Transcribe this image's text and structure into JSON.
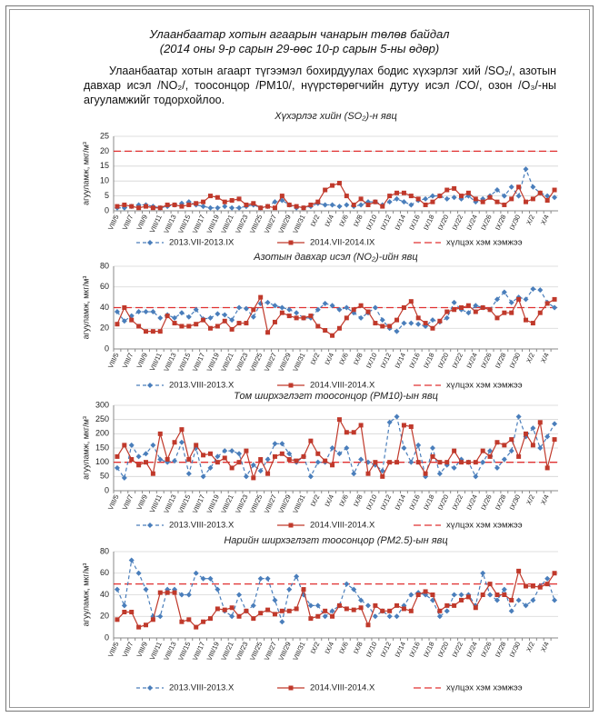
{
  "title": "Улаанбаатар хотын агаарын чанарын төлөв байдал",
  "subtitle": "(2014 оны 9-р сарын 29-өөс 10-р сарын 5-ны өдөр)",
  "paragraph": "Улаанбаатар хотын агаарт түгээмэл бохирдуулах бодис хүхэрлэг хий /SO₂/, азотын давхар исэл /NO₂/, тоосонцор /PM10/, нүүрстөрөгчийн дутуу исэл /CO/, озон /O₃/-ны агууламжийг тодорхойлоо.",
  "chart_data": [
    {
      "type": "line",
      "title": "Хүхэрлэг хийн (SO₂)-н явц",
      "y_label": "агууламж, мкг/м³",
      "categories": [
        "VIII/5",
        null,
        "VIII/7",
        null,
        "VIII/9",
        null,
        "VIII/11",
        null,
        "VIII/13",
        null,
        "VIII/15",
        null,
        "VIII/17",
        null,
        "VIII/19",
        null,
        "VIII/21",
        null,
        "VIII/23",
        null,
        "VIII/25",
        null,
        "VIII/27",
        null,
        "VIII/29",
        null,
        "VIII/31",
        null,
        "IX/2",
        null,
        "IX/4",
        null,
        "IX/6",
        null,
        "IX/8",
        null,
        "IX/10",
        null,
        "IX/12",
        null,
        "IX/14",
        null,
        "IX/16",
        null,
        "IX/18",
        null,
        "IX/20",
        null,
        "IX/22",
        null,
        "IX/24",
        null,
        "IX/26",
        null,
        "IX/28",
        null,
        "IX/30",
        null,
        "X/2",
        null,
        "X/4",
        null
      ],
      "series": [
        {
          "name": "2013.VII-2013.IX",
          "color": "#4a7ebb",
          "dashed": true,
          "marker": "diamond",
          "values": [
            1,
            1,
            1.5,
            2,
            2,
            1.5,
            1,
            1.5,
            2,
            2.5,
            3,
            2,
            1.5,
            1,
            1,
            1.5,
            1,
            1,
            1.5,
            2,
            1,
            1.5,
            3,
            3.5,
            2,
            1,
            1,
            1.5,
            2.5,
            2,
            2,
            1.5,
            2,
            1.5,
            2,
            3,
            3,
            2,
            3,
            4,
            3,
            2,
            3.5,
            4,
            5,
            5,
            4,
            4.5,
            4,
            5,
            3,
            4,
            5,
            7,
            5,
            8,
            5,
            14,
            8,
            6,
            5,
            4.5
          ]
        },
        {
          "name": "2014.VII-2014.IX",
          "color": "#c0392b",
          "dashed": false,
          "marker": "square",
          "values": [
            1.5,
            2,
            1.5,
            1,
            1.5,
            1,
            1,
            2,
            2,
            1.5,
            2,
            2.5,
            3,
            5,
            4.5,
            3,
            3.5,
            4,
            2,
            2.5,
            1,
            1.5,
            1,
            5,
            2,
            1.5,
            1,
            2,
            3,
            7,
            8.5,
            9.3,
            5,
            2,
            4,
            2,
            3,
            1.5,
            5,
            6,
            6,
            5,
            4,
            2,
            3,
            5,
            7,
            7.5,
            5,
            6,
            4,
            3,
            4.5,
            3,
            2,
            4,
            8,
            3,
            4,
            6,
            3.5,
            7
          ]
        }
      ],
      "limit": {
        "name": "хүлцэх хэм хэмжээ",
        "value": 20,
        "color": "#e03030"
      },
      "ylim": [
        0,
        25
      ],
      "yticks": [
        0,
        5,
        10,
        15,
        20,
        25
      ],
      "grid": true,
      "legend": "bottom"
    },
    {
      "type": "line",
      "title": "Азотын давхар исэл (NO₂)-ийн явц",
      "y_label": "агууламж, мкг/м³",
      "categories": [
        "VIII/5",
        null,
        "VIII/7",
        null,
        "VIII/9",
        null,
        "VIII/11",
        null,
        "VIII/13",
        null,
        "VIII/15",
        null,
        "VIII/17",
        null,
        "VIII/19",
        null,
        "VIII/21",
        null,
        "VIII/23",
        null,
        "VIII/25",
        null,
        "VIII/27",
        null,
        "VIII/29",
        null,
        "VIII/31",
        null,
        "IX/2",
        null,
        "IX/4",
        null,
        "IX/6",
        null,
        "IX/8",
        null,
        "IX/10",
        null,
        "IX/12",
        null,
        "IX/14",
        null,
        "IX/16",
        null,
        "IX/18",
        null,
        "IX/20",
        null,
        "IX/22",
        null,
        "IX/24",
        null,
        "IX/26",
        null,
        "IX/28",
        null,
        "IX/30",
        null,
        "X/2",
        null,
        "X/4",
        null
      ],
      "series": [
        {
          "name": "2013.VIII-2013.X",
          "color": "#4a7ebb",
          "dashed": true,
          "marker": "diamond",
          "values": [
            36,
            27,
            32,
            36,
            36,
            36,
            30,
            33,
            30,
            35,
            31,
            38,
            29,
            30,
            34,
            33,
            28,
            40,
            39,
            31,
            44,
            45,
            42,
            40,
            38,
            35,
            30,
            30,
            38,
            44,
            42,
            38,
            40,
            35,
            30,
            35,
            40,
            28,
            20,
            17,
            25,
            25,
            24,
            22,
            28,
            26,
            30,
            45,
            38,
            35,
            42,
            40,
            38,
            48,
            55,
            45,
            50,
            48,
            58,
            57,
            45,
            40
          ]
        },
        {
          "name": "2014.VIII-2014.X",
          "color": "#c0392b",
          "dashed": false,
          "marker": "square",
          "values": [
            24,
            40,
            28,
            22,
            17,
            17,
            17,
            32,
            25,
            22,
            22,
            24,
            28,
            20,
            22,
            27,
            19,
            25,
            25,
            38,
            50,
            16,
            26,
            35,
            32,
            30,
            30,
            32,
            22,
            18,
            13,
            20,
            30,
            38,
            42,
            36,
            25,
            22,
            22,
            28,
            40,
            46,
            30,
            25,
            20,
            27,
            36,
            38,
            40,
            42,
            36,
            40,
            38,
            30,
            35,
            35,
            48,
            28,
            25,
            35,
            44,
            48
          ]
        }
      ],
      "limit": {
        "name": "хүлцэх хэм хэмжээ",
        "value": 40,
        "color": "#e03030"
      },
      "ylim": [
        0,
        80
      ],
      "yticks": [
        0,
        20,
        40,
        60,
        80
      ],
      "grid": true,
      "legend": "bottom"
    },
    {
      "type": "line",
      "title": "Том ширхэглэгт тоосонцор (PM10)-ын явц",
      "y_label": "агууламж, мкг/м³",
      "categories": [
        "VIII/5",
        null,
        "VIII/7",
        null,
        "VIII/9",
        null,
        "VIII/11",
        null,
        "VIII/13",
        null,
        "VIII/15",
        null,
        "VIII/17",
        null,
        "VIII/19",
        null,
        "VIII/21",
        null,
        "VIII/23",
        null,
        "VIII/25",
        null,
        "VIII/27",
        null,
        "VIII/29",
        null,
        "VIII/31",
        null,
        "IX/2",
        null,
        "IX/4",
        null,
        "IX/6",
        null,
        "IX/8",
        null,
        "IX/10",
        null,
        "IX/12",
        null,
        "IX/14",
        null,
        "IX/16",
        null,
        "IX/18",
        null,
        "IX/20",
        null,
        "IX/22",
        null,
        "IX/24",
        null,
        "IX/26",
        null,
        "IX/28",
        null,
        "IX/30",
        null,
        "X/2",
        null,
        "X/4",
        null
      ],
      "series": [
        {
          "name": "2013.VIII-2013.X",
          "color": "#4a7ebb",
          "dashed": true,
          "marker": "diamond",
          "values": [
            80,
            45,
            160,
            120,
            130,
            160,
            110,
            100,
            105,
            170,
            60,
            150,
            50,
            80,
            120,
            140,
            140,
            130,
            50,
            90,
            70,
            110,
            165,
            165,
            130,
            100,
            120,
            50,
            100,
            100,
            150,
            130,
            150,
            60,
            110,
            100,
            90,
            70,
            240,
            260,
            150,
            100,
            160,
            50,
            150,
            60,
            90,
            80,
            110,
            100,
            50,
            100,
            140,
            80,
            110,
            140,
            260,
            190,
            220,
            150,
            190,
            235
          ]
        },
        {
          "name": "2014.VIII-2014.X",
          "color": "#c0392b",
          "dashed": false,
          "marker": "square",
          "values": [
            120,
            160,
            110,
            90,
            100,
            60,
            200,
            110,
            170,
            215,
            110,
            160,
            125,
            130,
            100,
            115,
            80,
            100,
            140,
            45,
            110,
            60,
            120,
            130,
            110,
            105,
            120,
            175,
            130,
            105,
            90,
            250,
            205,
            205,
            230,
            60,
            100,
            50,
            100,
            100,
            230,
            225,
            100,
            60,
            120,
            100,
            100,
            140,
            100,
            100,
            100,
            140,
            120,
            170,
            160,
            180,
            120,
            200,
            160,
            240,
            80,
            180
          ]
        }
      ],
      "limit": {
        "name": "хүлцэх хэм хэмжээ",
        "value": 100,
        "color": "#e03030"
      },
      "ylim": [
        0,
        300
      ],
      "yticks": [
        0,
        50,
        100,
        150,
        200,
        250,
        300
      ],
      "grid": true,
      "legend": "bottom"
    },
    {
      "type": "line",
      "title": "Нарийн ширхэглэгт тоосонцор (PM2.5)-ын явц",
      "y_label": "агууламж, мкг/м³",
      "categories": [
        "VIII/5",
        null,
        "VIII/7",
        null,
        "VIII/9",
        null,
        "VIII/11",
        null,
        "VIII/13",
        null,
        "VIII/15",
        null,
        "VIII/17",
        null,
        "VIII/19",
        null,
        "VIII/21",
        null,
        "VIII/23",
        null,
        "VIII/25",
        null,
        "VIII/27",
        null,
        "VIII/29",
        null,
        "VIII/31",
        null,
        "IX/2",
        null,
        "IX/4",
        null,
        "IX/6",
        null,
        "IX/8",
        null,
        "IX/10",
        null,
        "IX/12",
        null,
        "IX/14",
        null,
        "IX/16",
        null,
        "IX/18",
        null,
        "IX/20",
        null,
        "IX/22",
        null,
        "IX/24",
        null,
        "IX/26",
        null,
        "IX/28",
        null,
        "IX/30",
        null,
        "X/2",
        null,
        "X/4",
        null
      ],
      "series": [
        {
          "name": "2013.VIII-2013.X",
          "color": "#4a7ebb",
          "dashed": true,
          "marker": "diamond",
          "values": [
            45,
            30,
            72,
            60,
            45,
            20,
            20,
            45,
            45,
            40,
            40,
            60,
            55,
            55,
            45,
            25,
            20,
            40,
            25,
            30,
            55,
            55,
            35,
            15,
            45,
            57,
            40,
            30,
            30,
            20,
            25,
            30,
            50,
            45,
            35,
            30,
            20,
            25,
            20,
            20,
            30,
            40,
            42,
            40,
            35,
            20,
            25,
            40,
            40,
            40,
            30,
            60,
            40,
            35,
            45,
            25,
            35,
            30,
            35,
            48,
            55,
            35
          ]
        },
        {
          "name": "2014.VIII-2014.X",
          "color": "#c0392b",
          "dashed": false,
          "marker": "square",
          "values": [
            17,
            24,
            24,
            10,
            12,
            17,
            42,
            42,
            42,
            15,
            17,
            10,
            15,
            18,
            27,
            26,
            28,
            20,
            25,
            18,
            23,
            26,
            22,
            25,
            25,
            27,
            45,
            18,
            20,
            25,
            20,
            30,
            27,
            26,
            28,
            12,
            30,
            25,
            25,
            30,
            27,
            25,
            40,
            43,
            40,
            25,
            30,
            30,
            35,
            38,
            28,
            40,
            50,
            40,
            40,
            35,
            62,
            48,
            48,
            47,
            50,
            60
          ]
        }
      ],
      "limit": {
        "name": "хүлцэх хэм хэмжээ",
        "value": 50,
        "color": "#e03030"
      },
      "ylim": [
        0,
        80
      ],
      "yticks": [
        0,
        20,
        40,
        60,
        80
      ],
      "grid": true,
      "legend": "bottom"
    }
  ]
}
